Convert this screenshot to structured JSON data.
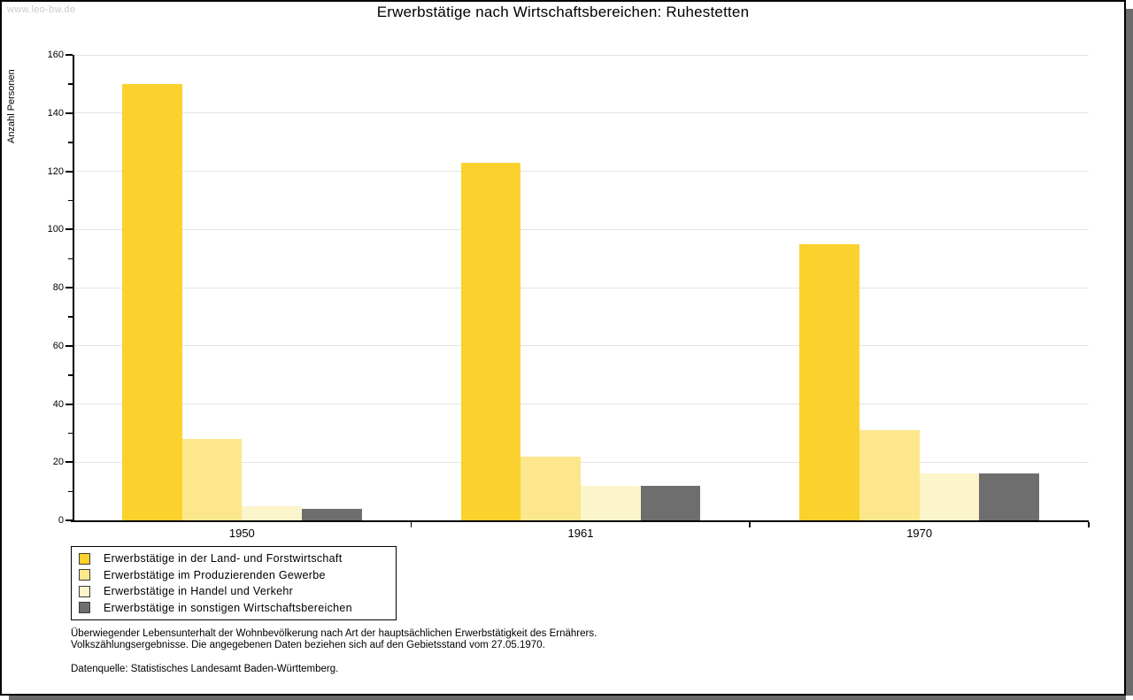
{
  "watermark": "www.leo-bw.de",
  "title": "Erwerbstätige nach Wirtschaftsbereichen: Ruhestetten",
  "chart_data": {
    "type": "bar",
    "title": "Erwerbstätige nach Wirtschaftsbereichen: Ruhestetten",
    "ylabel": "Anzahl Personen",
    "xlabel": "",
    "categories": [
      "1950",
      "1961",
      "1970"
    ],
    "series": [
      {
        "name": "Erwerbstätige in der Land- und Forstwirtschaft",
        "color": "#FBD12D",
        "values": [
          150,
          123,
          95
        ]
      },
      {
        "name": "Erwerbstätige im Produzierenden Gewerbe",
        "color": "#FCE78D",
        "values": [
          28,
          22,
          31
        ]
      },
      {
        "name": "Erwerbstätige in Handel und Verkehr",
        "color": "#FCF4CB",
        "values": [
          5,
          12,
          16
        ]
      },
      {
        "name": "Erwerbstätige in sonstigen Wirtschaftsbereichen",
        "color": "#6E6E6E",
        "values": [
          4,
          12,
          16
        ]
      }
    ],
    "ylim": [
      0,
      160
    ],
    "ytick_step": 20,
    "yminor_step": 10,
    "grid": true,
    "legend_position": "bottom-left",
    "axis_color": "#000000",
    "grid_color": "#E4E4E4"
  },
  "notes": {
    "line1": "Überwiegender Lebensunterhalt der Wohnbevölkerung nach Art der hauptsächlichen Erwerbstätigkeit des Ernährers.",
    "line2": "Volkszählungsergebnisse. Die angegebenen Daten beziehen sich auf den Gebietsstand vom 27.05.1970.",
    "source": "Datenquelle: Statistisches Landesamt Baden-Württemberg."
  }
}
